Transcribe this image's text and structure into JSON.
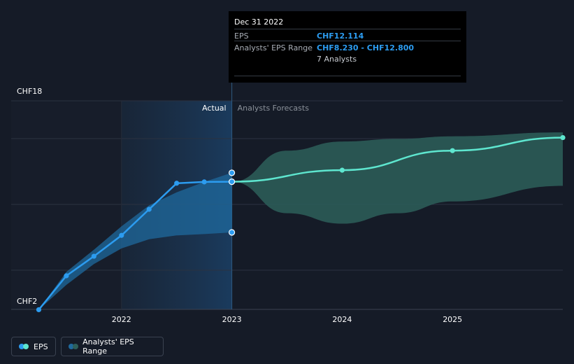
{
  "tooltip": {
    "date": "Dec 31 2022",
    "eps_label": "EPS",
    "eps_value": "CHF12.114",
    "range_label": "Analysts' EPS Range",
    "range_value": "CHF8.230 - CHF12.800",
    "analysts": "7 Analysts"
  },
  "legend": {
    "eps": "EPS",
    "range": "Analysts' EPS Range"
  },
  "colors": {
    "background": "#151b27",
    "actual_line": "#2c9cf0",
    "forecast_line": "#5ee6cf",
    "actual_band": "#1f6a9e",
    "forecast_band": "#2d5f5a"
  },
  "chart_data": {
    "type": "line",
    "title": "",
    "xlabel": "",
    "ylabel": "",
    "ylim": [
      2,
      18
    ],
    "y_tick_labels": [
      "CHF18",
      "CHF2"
    ],
    "x_tick_labels": [
      "2022",
      "2023",
      "2024",
      "2025"
    ],
    "section_labels": {
      "actual": "Actual",
      "forecast": "Analysts Forecasts"
    },
    "series": [
      {
        "name": "EPS",
        "segment": "actual",
        "x": [
          2021.25,
          2021.5,
          2021.75,
          2022.0,
          2022.25,
          2022.5,
          2022.75,
          2023.0
        ],
        "y": [
          2.3,
          4.9,
          6.4,
          8.0,
          10.0,
          12.0,
          12.1,
          12.114
        ]
      },
      {
        "name": "EPS",
        "segment": "forecast",
        "x": [
          2023.0,
          2024.0,
          2025.0,
          2026.0
        ],
        "y": [
          12.114,
          13.0,
          14.5,
          15.5
        ]
      }
    ],
    "range": [
      {
        "name": "Analysts' EPS Range",
        "segment": "actual",
        "x": [
          2021.25,
          2021.5,
          2021.75,
          2022.0,
          2022.25,
          2022.5,
          2022.75,
          2023.0
        ],
        "low": [
          2.3,
          4.2,
          5.8,
          7.0,
          7.7,
          8.0,
          8.1,
          8.23
        ],
        "high": [
          2.3,
          5.2,
          6.9,
          8.7,
          10.3,
          11.3,
          12.1,
          12.8
        ]
      },
      {
        "name": "Analysts' EPS Range",
        "segment": "forecast",
        "x": [
          2023.0,
          2023.5,
          2024.0,
          2024.5,
          2025.0,
          2026.0
        ],
        "low": [
          12.114,
          9.7,
          8.9,
          9.7,
          10.6,
          11.8
        ],
        "high": [
          12.114,
          14.5,
          15.2,
          15.4,
          15.6,
          15.9
        ]
      }
    ],
    "highlight": {
      "x": 2023.0,
      "eps": 12.114,
      "low": 8.23,
      "high": 12.8
    }
  }
}
